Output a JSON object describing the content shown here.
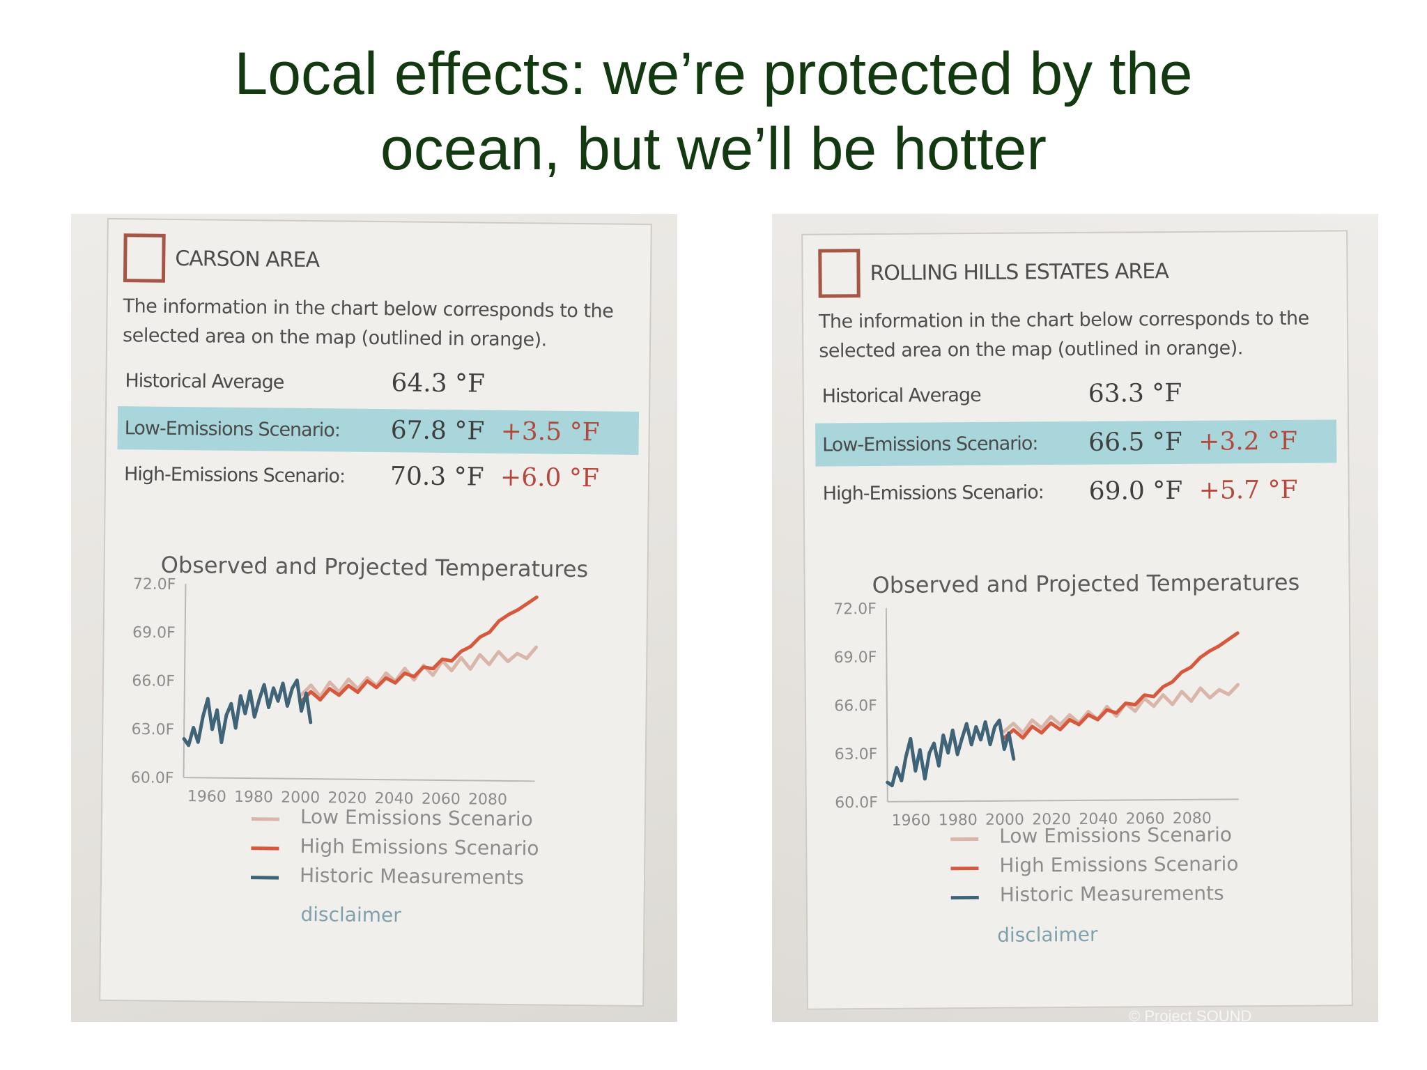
{
  "slide": {
    "title_line1": "Local effects: we’re protected by the",
    "title_line2": "ocean, but we’ll be hotter",
    "watermark": "© Project SOUND",
    "colors": {
      "title": "#12390f",
      "low": "#d9b6a9",
      "high": "#d6593d",
      "historic": "#3f6478"
    }
  },
  "panels": [
    {
      "area_name": "CARSON AREA",
      "description": "The information in the chart below corresponds to the selected area on the map (outlined in orange).",
      "historical_label": "Historical Average",
      "historical_value": "64.3 °F",
      "low_label": "Low-Emissions Scenario:",
      "low_value": "67.8 °F",
      "low_diff": "+3.5 °F",
      "high_label": "High-Emissions Scenario:",
      "high_value": "70.3 °F",
      "high_diff": "+6.0 °F",
      "chart_title": "Observed and Projected Temperatures",
      "legend_low": "Low Emissions Scenario",
      "legend_high": "High Emissions Scenario",
      "legend_historic": "Historic Measurements",
      "disclaimer": "disclaimer"
    },
    {
      "area_name": "ROLLING HILLS ESTATES AREA",
      "description": "The information in the chart below corresponds to the selected area on the map (outlined in orange).",
      "historical_label": "Historical Average",
      "historical_value": "63.3 °F",
      "low_label": "Low-Emissions Scenario:",
      "low_value": "66.5 °F",
      "low_diff": "+3.2 °F",
      "high_label": "High-Emissions Scenario:",
      "high_value": "69.0 °F",
      "high_diff": "+5.7 °F",
      "chart_title": "Observed and Projected Temperatures",
      "legend_low": "Low Emissions Scenario",
      "legend_high": "High Emissions Scenario",
      "legend_historic": "Historic Measurements",
      "disclaimer": "disclaimer"
    }
  ],
  "chart_data": [
    {
      "type": "line",
      "title": "Observed and Projected Temperatures",
      "xlim": [
        1950,
        2100
      ],
      "ylim": [
        60,
        72
      ],
      "xticks": [
        "1960",
        "1980",
        "2000",
        "2020",
        "2040",
        "2060",
        "2080"
      ],
      "yticks": [
        "60.0F",
        "63.0F",
        "66.0F",
        "69.0F",
        "72.0F"
      ],
      "series": [
        {
          "name": "Historic Measurements",
          "x": [
            1950,
            1952,
            1954,
            1956,
            1958,
            1960,
            1962,
            1964,
            1966,
            1968,
            1970,
            1972,
            1974,
            1976,
            1978,
            1980,
            1982,
            1984,
            1986,
            1988,
            1990,
            1992,
            1994,
            1996,
            1998,
            2000,
            2002,
            2004
          ],
          "y": [
            62.4,
            62.0,
            63.1,
            62.2,
            63.8,
            64.9,
            63.0,
            64.2,
            62.2,
            63.9,
            64.6,
            63.1,
            65.1,
            64.0,
            65.4,
            63.8,
            64.9,
            65.8,
            64.4,
            65.6,
            64.8,
            65.9,
            64.5,
            65.6,
            66.1,
            64.2,
            65.3,
            63.5
          ]
        },
        {
          "name": "Low Emissions Scenario",
          "x": [
            2000,
            2004,
            2008,
            2012,
            2016,
            2020,
            2024,
            2028,
            2032,
            2036,
            2040,
            2044,
            2048,
            2052,
            2056,
            2060,
            2064,
            2068,
            2072,
            2076,
            2080,
            2084,
            2088,
            2092,
            2096,
            2100
          ],
          "y": [
            65.2,
            65.8,
            65.1,
            66.0,
            65.4,
            66.2,
            65.6,
            66.3,
            65.8,
            66.6,
            66.1,
            66.9,
            66.2,
            67.1,
            66.5,
            67.4,
            66.8,
            67.6,
            66.9,
            67.8,
            67.2,
            68.0,
            67.4,
            67.9,
            67.6,
            68.3
          ]
        },
        {
          "name": "High Emissions Scenario",
          "x": [
            2000,
            2004,
            2008,
            2012,
            2016,
            2020,
            2024,
            2028,
            2032,
            2036,
            2040,
            2044,
            2048,
            2052,
            2056,
            2060,
            2064,
            2068,
            2072,
            2076,
            2080,
            2084,
            2088,
            2092,
            2096,
            2100
          ],
          "y": [
            64.8,
            65.4,
            64.9,
            65.6,
            65.2,
            65.8,
            65.4,
            66.1,
            65.7,
            66.3,
            66.0,
            66.6,
            66.4,
            67.0,
            66.9,
            67.5,
            67.4,
            68.0,
            68.3,
            68.9,
            69.2,
            69.9,
            70.3,
            70.6,
            71.0,
            71.4
          ]
        }
      ],
      "legend": "bottom"
    },
    {
      "type": "line",
      "title": "Observed and Projected Temperatures",
      "xlim": [
        1950,
        2100
      ],
      "ylim": [
        60,
        72
      ],
      "xticks": [
        "1960",
        "1980",
        "2000",
        "2020",
        "2040",
        "2060",
        "2080"
      ],
      "yticks": [
        "60.0F",
        "63.0F",
        "66.0F",
        "69.0F",
        "72.0F"
      ],
      "series": [
        {
          "name": "Historic Measurements",
          "x": [
            1950,
            1952,
            1954,
            1956,
            1958,
            1960,
            1962,
            1964,
            1966,
            1968,
            1970,
            1972,
            1974,
            1976,
            1978,
            1980,
            1982,
            1984,
            1986,
            1988,
            1990,
            1992,
            1994,
            1996,
            1998,
            2000,
            2002,
            2004
          ],
          "y": [
            61.2,
            61.0,
            62.1,
            61.3,
            62.8,
            63.9,
            61.9,
            63.2,
            61.4,
            63.0,
            63.6,
            62.2,
            64.1,
            63.0,
            64.4,
            62.9,
            63.9,
            64.8,
            63.5,
            64.6,
            63.8,
            64.9,
            63.5,
            64.6,
            65.0,
            63.2,
            64.2,
            62.6
          ]
        },
        {
          "name": "Low Emissions Scenario",
          "x": [
            2000,
            2004,
            2008,
            2012,
            2016,
            2020,
            2024,
            2028,
            2032,
            2036,
            2040,
            2044,
            2048,
            2052,
            2056,
            2060,
            2064,
            2068,
            2072,
            2076,
            2080,
            2084,
            2088,
            2092,
            2096,
            2100
          ],
          "y": [
            64.3,
            64.8,
            64.2,
            65.0,
            64.5,
            65.2,
            64.7,
            65.3,
            64.8,
            65.5,
            65.0,
            65.8,
            65.2,
            66.0,
            65.5,
            66.3,
            65.8,
            66.5,
            65.9,
            66.7,
            66.1,
            66.9,
            66.3,
            66.8,
            66.5,
            67.1
          ]
        },
        {
          "name": "High Emissions Scenario",
          "x": [
            2000,
            2004,
            2008,
            2012,
            2016,
            2020,
            2024,
            2028,
            2032,
            2036,
            2040,
            2044,
            2048,
            2052,
            2056,
            2060,
            2064,
            2068,
            2072,
            2076,
            2080,
            2084,
            2088,
            2092,
            2096,
            2100
          ],
          "y": [
            63.9,
            64.4,
            63.9,
            64.6,
            64.2,
            64.8,
            64.4,
            65.0,
            64.7,
            65.3,
            65.0,
            65.6,
            65.4,
            66.0,
            65.9,
            66.5,
            66.4,
            67.0,
            67.3,
            67.9,
            68.2,
            68.8,
            69.2,
            69.5,
            69.9,
            70.3
          ]
        }
      ],
      "legend": "bottom"
    }
  ]
}
